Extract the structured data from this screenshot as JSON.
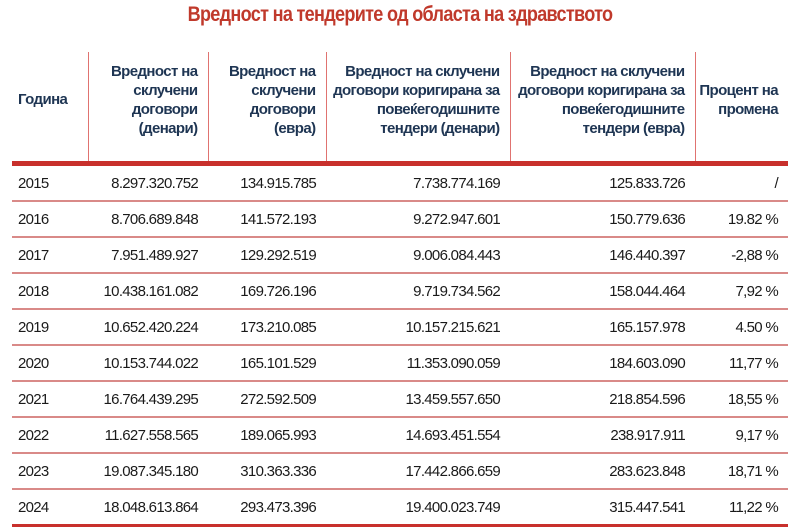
{
  "title": "Вредност на тендерите од областа на здравството",
  "colors": {
    "title": "#c0392b",
    "header_text": "#1e3553",
    "rule": "#c8302c"
  },
  "table": {
    "headers": [
      "Година",
      "Вредност на склучени договори (денари)",
      "Вредност на склучени договори (евра)",
      "Вредност на склучени договори коригирана за повеќегодишните тендери (денари)",
      "Вредност на склучени договори коригирана за повеќегодишните тендери (евра)",
      "Процент на промена"
    ],
    "rows": [
      [
        "2015",
        "8.297.320.752",
        "134.915.785",
        "7.738.774.169",
        "125.833.726",
        "/"
      ],
      [
        "2016",
        "8.706.689.848",
        "141.572.193",
        "9.272.947.601",
        "150.779.636",
        "19.82 %"
      ],
      [
        "2017",
        "7.951.489.927",
        "129.292.519",
        "9.006.084.443",
        "146.440.397",
        "-2,88 %"
      ],
      [
        "2018",
        "10.438.161.082",
        "169.726.196",
        "9.719.734.562",
        "158.044.464",
        "7,92 %"
      ],
      [
        "2019",
        "10.652.420.224",
        "173.210.085",
        "10.157.215.621",
        "165.157.978",
        "4.50 %"
      ],
      [
        "2020",
        "10.153.744.022",
        "165.101.529",
        "11.353.090.059",
        "184.603.090",
        "11,77 %"
      ],
      [
        "2021",
        "16.764.439.295",
        "272.592.509",
        "13.459.557.650",
        "218.854.596",
        "18,55 %"
      ],
      [
        "2022",
        "11.627.558.565",
        "189.065.993",
        "14.693.451.554",
        "238.917.911",
        "9,17 %"
      ],
      [
        "2023",
        "19.087.345.180",
        "310.363.336",
        "17.442.866.659",
        "283.623.848",
        "18,71 %"
      ],
      [
        "2024",
        "18.048.613.864",
        "293.473.396",
        "19.400.023.749",
        "315.447.541",
        "11,22 %"
      ]
    ]
  }
}
